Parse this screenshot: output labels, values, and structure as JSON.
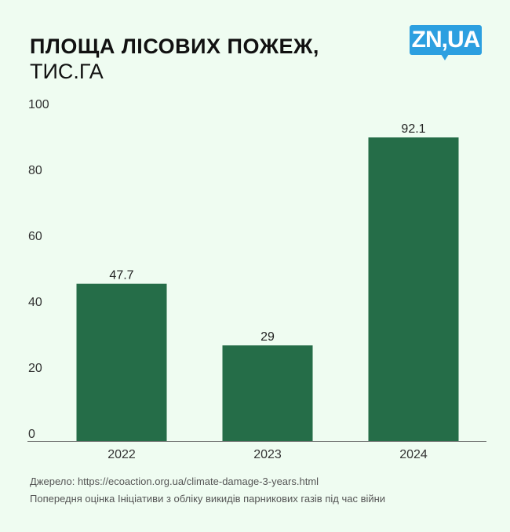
{
  "header": {
    "title": "ПЛОЩА ЛІСОВИХ ПОЖЕЖ,",
    "subtitle": "ТИС.ГА",
    "logo": "ZN,UA"
  },
  "colors": {
    "bar": "#256d48",
    "background": "#effcf1",
    "logo": "#2c9fe0"
  },
  "chart_data": {
    "type": "bar",
    "title": "ПЛОЩА ЛІСОВИХ ПОЖЕЖ, ТИС.ГА",
    "categories": [
      "2022",
      "2023",
      "2024"
    ],
    "values": [
      47.7,
      29,
      92.1
    ],
    "data_labels": [
      "47.7",
      "29",
      "92.1"
    ],
    "ylim": [
      0,
      100
    ],
    "yticks": [
      "0",
      "20",
      "40",
      "60",
      "80",
      "100"
    ],
    "grid": false
  },
  "footer": {
    "source": "Джерело: https://ecoaction.org.ua/climate-damage-3-years.html",
    "note": "Попередня оцінка Ініціативи з обліку викидів парникових газів під час війни"
  }
}
